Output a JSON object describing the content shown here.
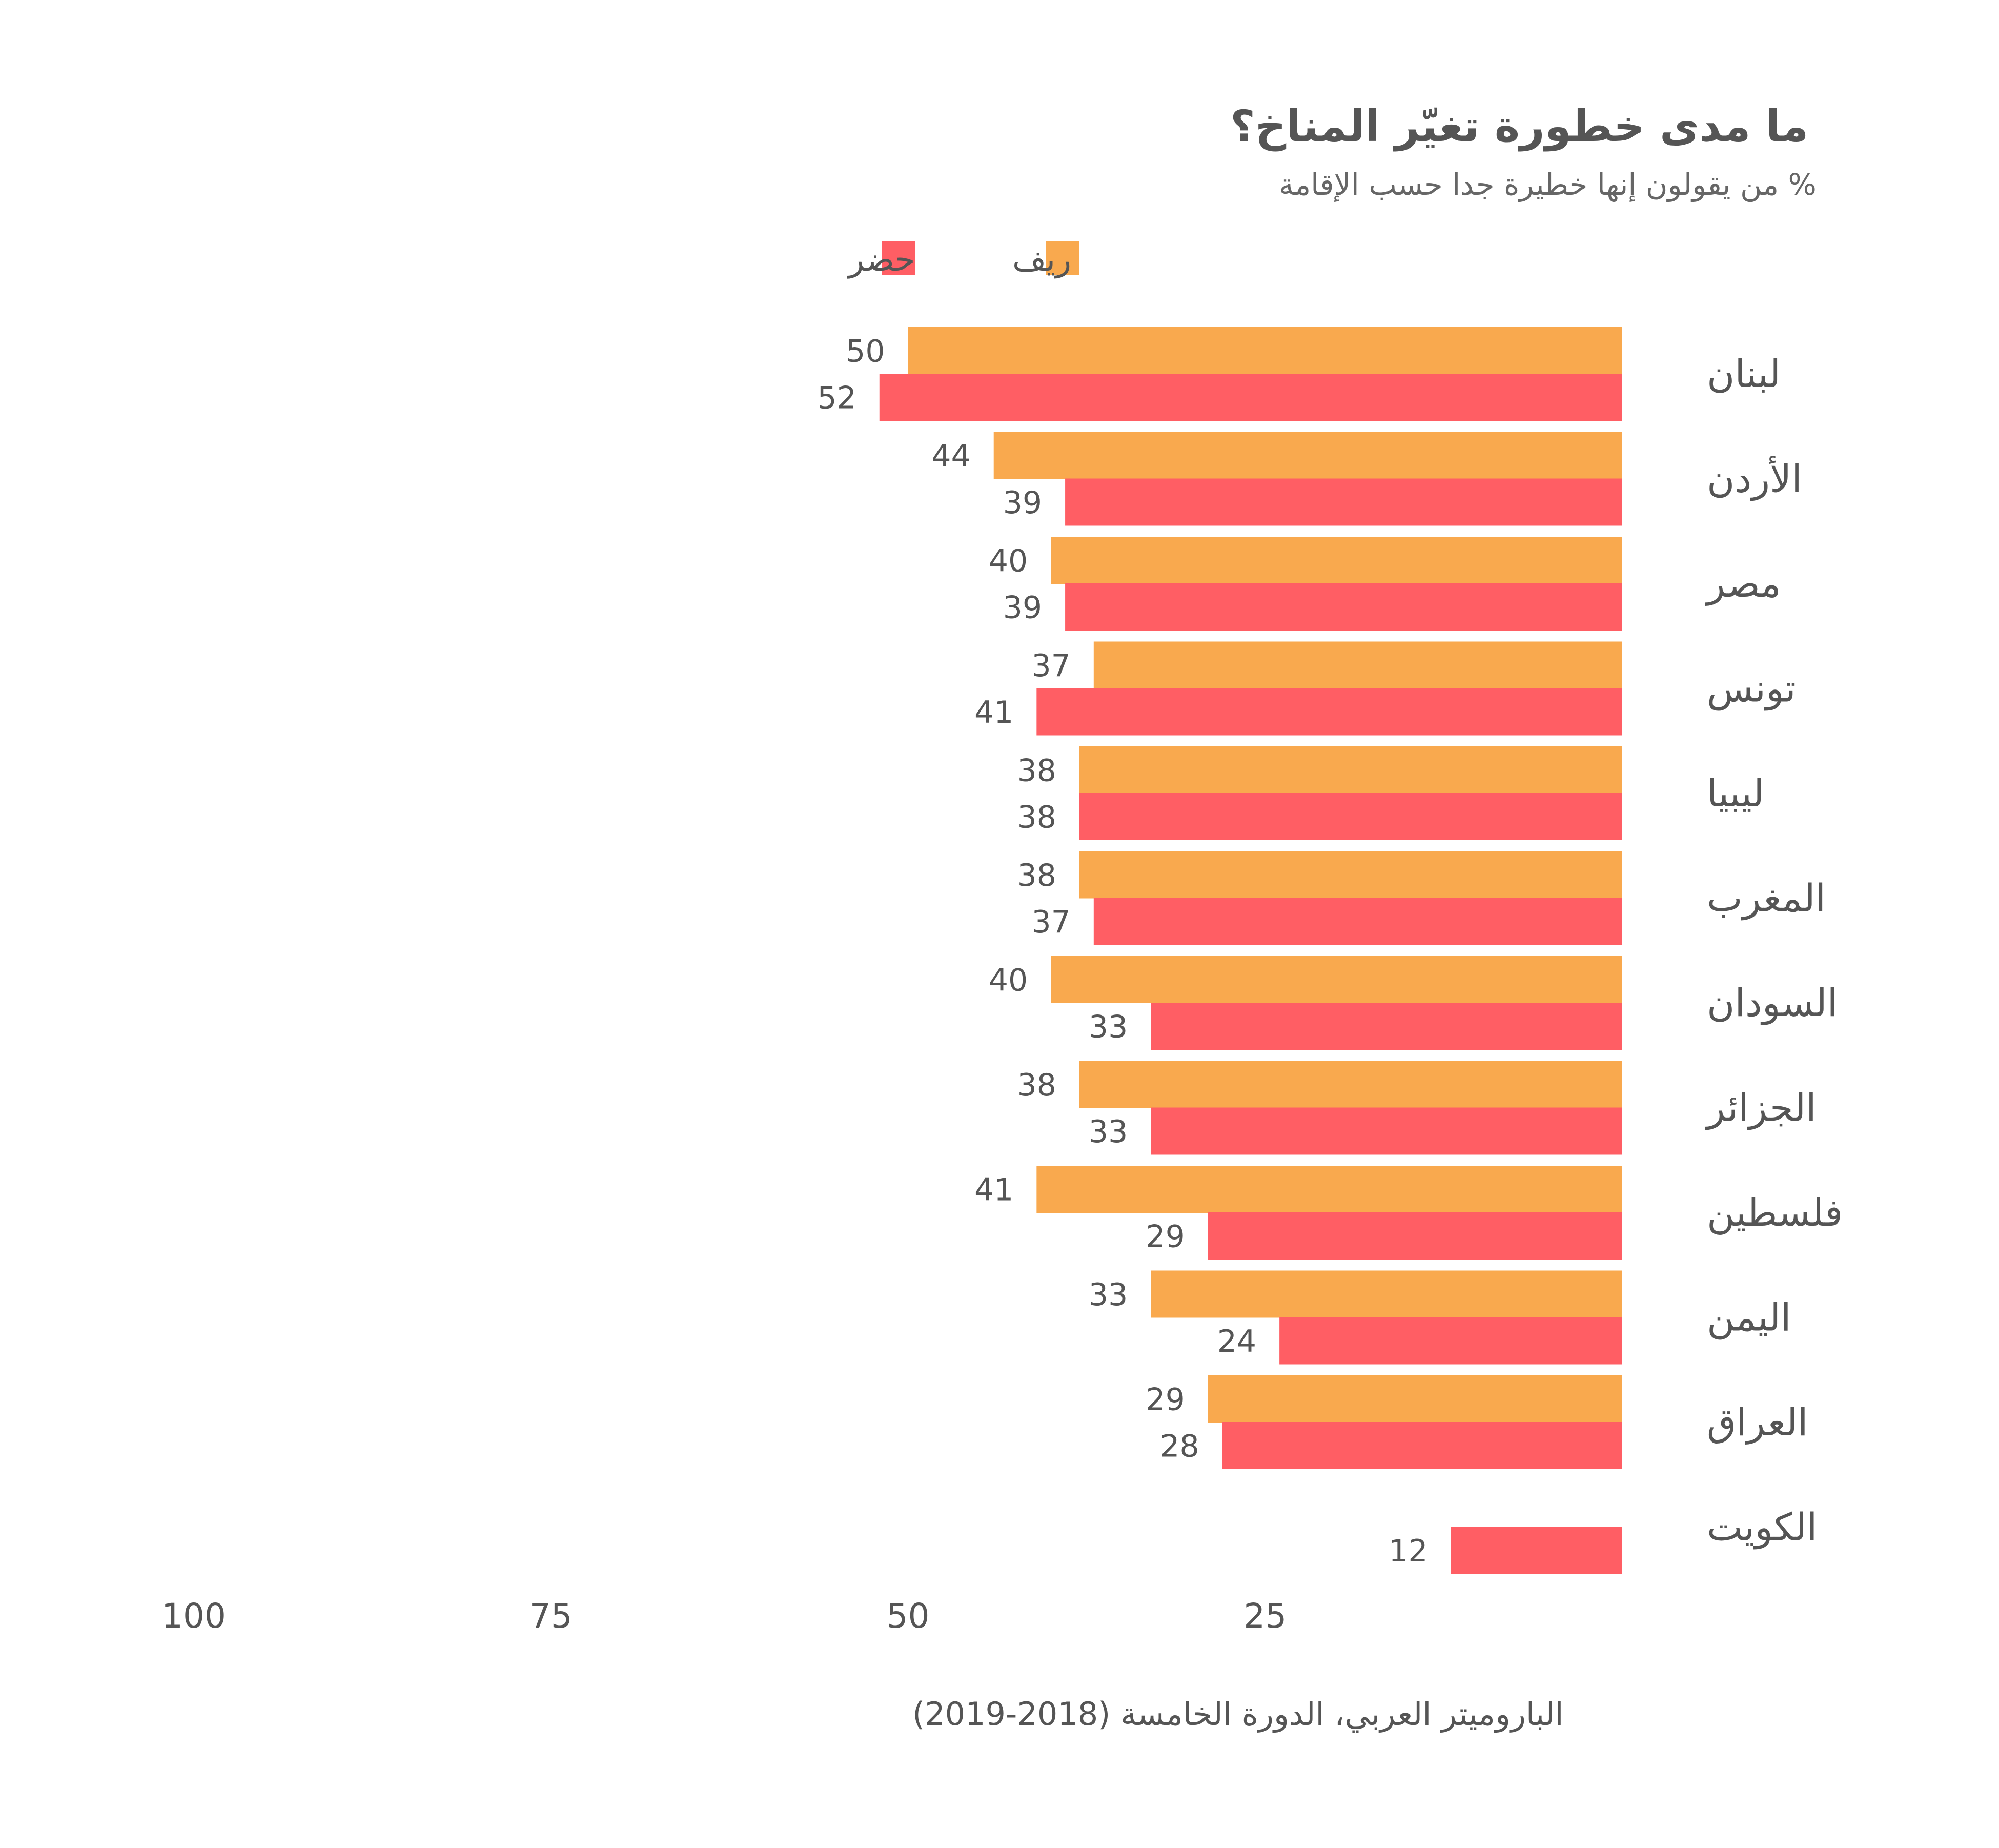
{
  "colors": {
    "rural": "#F9A94E",
    "urban": "#FF5E64",
    "text": "#555555"
  },
  "chart_data": {
    "type": "bar",
    "orientation": "horizontal",
    "title": "ما مدى خطورة تغيّر المناخ؟",
    "subtitle": "% من يقولون إنها خطيرة جدا حسب الإقامة",
    "legend": {
      "position": "top",
      "entries": [
        "ريف",
        "حضر"
      ]
    },
    "categories": [
      "لبنان",
      "الأردن",
      "مصر",
      "تونس",
      "ليبيا",
      "المغرب",
      "السودان",
      "الجزائر",
      "فلسطين",
      "اليمن",
      "العراق",
      "الكويت"
    ],
    "series": [
      {
        "name": "ريف",
        "color": "#F9A94E",
        "values": [
          50,
          44,
          40,
          37,
          38,
          38,
          40,
          38,
          41,
          33,
          29,
          null
        ]
      },
      {
        "name": "حضر",
        "color": "#FF5E64",
        "values": [
          52,
          39,
          39,
          41,
          38,
          37,
          33,
          33,
          29,
          24,
          28,
          12
        ]
      }
    ],
    "xlim": [
      0,
      100
    ],
    "x_reversed": true,
    "ticks": [
      100,
      75,
      50,
      25
    ],
    "grid": false
  },
  "source": "الباروميتر العربي، الدورة الخامسة (2018-2019)"
}
